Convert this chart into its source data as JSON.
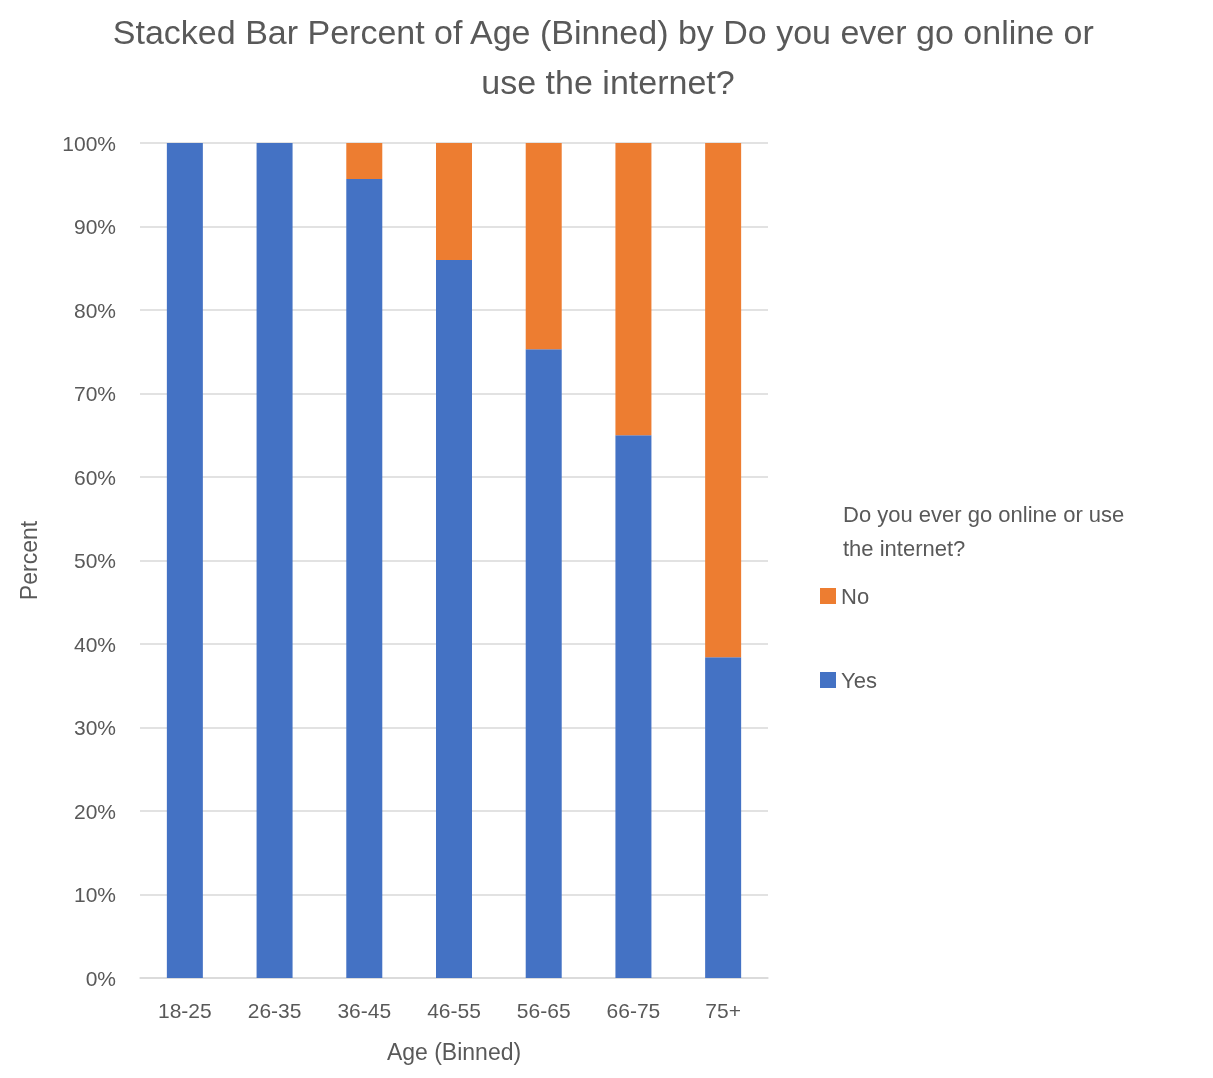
{
  "chart_data": {
    "type": "bar",
    "title": "Stacked Bar Percent of Age (Binned) by Do you ever go online or use the internet?",
    "xlabel": "Age (Binned)",
    "ylabel": "Percent",
    "legend_title": "Do you ever go online or use the internet?",
    "categories": [
      "18-25",
      "26-35",
      "36-45",
      "46-55",
      "56-65",
      "66-75",
      "75+"
    ],
    "series": [
      {
        "name": "Yes",
        "color": "#4472c4",
        "values": [
          100,
          100,
          95.7,
          86,
          75.3,
          65,
          38.4
        ]
      },
      {
        "name": "No",
        "color": "#ed7d31",
        "values": [
          0,
          0,
          4.3,
          14,
          24.7,
          35,
          61.6
        ]
      }
    ],
    "stacked": true,
    "ylim": [
      0,
      100
    ],
    "yticks": [
      {
        "value": 0,
        "label": "0%"
      },
      {
        "value": 10,
        "label": "10%"
      },
      {
        "value": 20,
        "label": "20%"
      },
      {
        "value": 30,
        "label": "30%"
      },
      {
        "value": 40,
        "label": "40%"
      },
      {
        "value": 50,
        "label": "50%"
      },
      {
        "value": 60,
        "label": "60%"
      },
      {
        "value": 70,
        "label": "70%"
      },
      {
        "value": 80,
        "label": "80%"
      },
      {
        "value": 90,
        "label": "90%"
      },
      {
        "value": 100,
        "label": "100%"
      }
    ],
    "grid": "y",
    "legend": "right"
  }
}
